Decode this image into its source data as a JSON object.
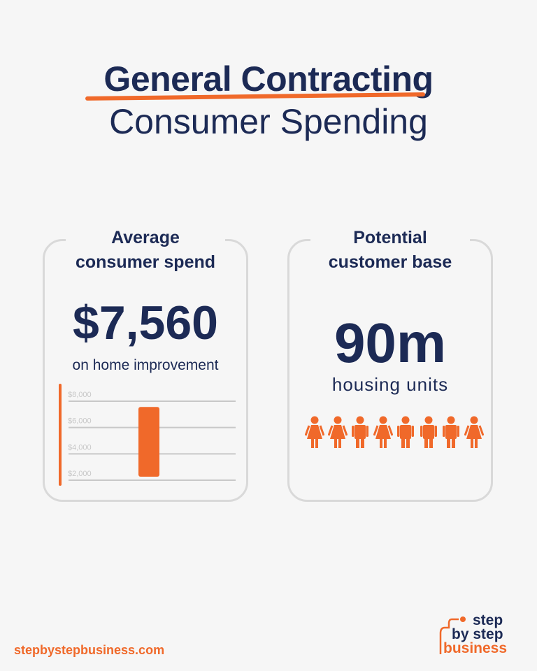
{
  "header": {
    "title": "General Contracting",
    "subtitle": "Consumer Spending"
  },
  "cards": [
    {
      "title_line1": "Average",
      "title_line2": "consumer spend",
      "value": "$7,560",
      "caption": "on home improvement"
    },
    {
      "title_line1": "Potential",
      "title_line2": "customer base",
      "value": "90m",
      "caption": "housing units",
      "people": [
        "female",
        "female",
        "male",
        "female",
        "male",
        "male",
        "male",
        "female"
      ]
    }
  ],
  "chart_data": {
    "type": "bar",
    "categories": [
      ""
    ],
    "values": [
      7560
    ],
    "ytick_labels": [
      "$8,000",
      "$6,000",
      "$4,000",
      "$2,000"
    ],
    "yticks": [
      8000,
      6000,
      4000,
      2000
    ],
    "ylim": [
      2000,
      8000
    ],
    "grid": true,
    "bar_color": "#f0692a"
  },
  "colors": {
    "navy": "#1c2a55",
    "orange": "#f0692a"
  },
  "footer": {
    "url": "stepbystepbusiness.com"
  },
  "logo": {
    "line1": "step",
    "line2": "by step",
    "line3": "business"
  }
}
